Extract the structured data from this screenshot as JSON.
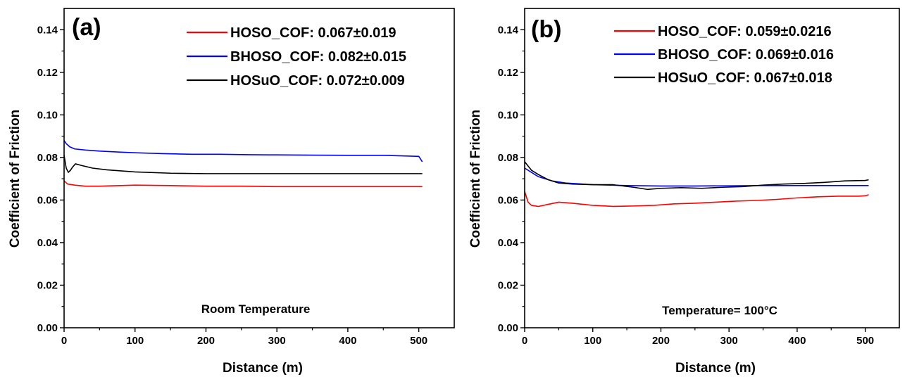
{
  "chart_data": [
    {
      "type": "line",
      "panel_label": "(a)",
      "xlabel": "Distance (m)",
      "ylabel": "Coefficient of Friction",
      "xlim": [
        0,
        550
      ],
      "ylim": [
        0,
        0.15
      ],
      "xticks": [
        0,
        100,
        200,
        300,
        400,
        500
      ],
      "yticks": [
        0.0,
        0.02,
        0.04,
        0.06,
        0.08,
        0.1,
        0.12,
        0.14
      ],
      "xtick_labels": [
        "0",
        "100",
        "200",
        "300",
        "400",
        "500"
      ],
      "ytick_labels": [
        "0.00",
        "0.02",
        "0.04",
        "0.06",
        "0.08",
        "0.10",
        "0.12",
        "0.14"
      ],
      "annotation": "Room Temperature",
      "legend_position": "top-right",
      "series": [
        {
          "name": "HOSO_COF: 0.067±0.019",
          "color": "#ff0000",
          "x": [
            0,
            5,
            15,
            30,
            50,
            100,
            150,
            200,
            250,
            300,
            350,
            400,
            450,
            505
          ],
          "y": [
            0.069,
            0.0675,
            0.067,
            0.0665,
            0.0665,
            0.067,
            0.0668,
            0.0665,
            0.0665,
            0.0663,
            0.0663,
            0.0663,
            0.0663,
            0.0663
          ]
        },
        {
          "name": "BHOSO_COF: 0.082±0.015",
          "color": "#0000ff",
          "x": [
            0,
            3,
            8,
            15,
            30,
            50,
            80,
            100,
            140,
            180,
            220,
            260,
            300,
            350,
            400,
            450,
            500,
            505
          ],
          "y": [
            0.088,
            0.0865,
            0.085,
            0.084,
            0.0835,
            0.083,
            0.0825,
            0.0822,
            0.0818,
            0.0815,
            0.0815,
            0.0813,
            0.0812,
            0.0811,
            0.081,
            0.081,
            0.0805,
            0.078
          ]
        },
        {
          "name": "HOSuO_COF: 0.072±0.009",
          "color": "#000000",
          "x": [
            0,
            3,
            6,
            9,
            12,
            16,
            25,
            40,
            60,
            100,
            150,
            200,
            250,
            300,
            350,
            400,
            450,
            505
          ],
          "y": [
            0.081,
            0.075,
            0.073,
            0.074,
            0.0755,
            0.077,
            0.0762,
            0.075,
            0.0742,
            0.0732,
            0.0726,
            0.0724,
            0.0724,
            0.0724,
            0.0724,
            0.0724,
            0.0724,
            0.0724
          ]
        }
      ]
    },
    {
      "type": "line",
      "panel_label": "(b)",
      "xlabel": "Distance (m)",
      "ylabel": "Coefficient of Friction",
      "xlim": [
        0,
        550
      ],
      "ylim": [
        0,
        0.15
      ],
      "xticks": [
        0,
        100,
        200,
        300,
        400,
        500
      ],
      "yticks": [
        0.0,
        0.02,
        0.04,
        0.06,
        0.08,
        0.1,
        0.12,
        0.14
      ],
      "xtick_labels": [
        "0",
        "100",
        "200",
        "300",
        "400",
        "500"
      ],
      "ytick_labels": [
        "0.00",
        "0.02",
        "0.04",
        "0.06",
        "0.08",
        "0.10",
        "0.12",
        "0.14"
      ],
      "annotation": "Temperature= 100°C",
      "legend_position": "top-right",
      "series": [
        {
          "name": "HOSO_COF: 0.059±0.0216",
          "color": "#ff0000",
          "x": [
            0,
            5,
            10,
            20,
            35,
            50,
            70,
            100,
            130,
            160,
            190,
            220,
            250,
            280,
            310,
            340,
            370,
            400,
            430,
            460,
            490,
            500,
            505
          ],
          "y": [
            0.064,
            0.059,
            0.0575,
            0.057,
            0.058,
            0.059,
            0.0585,
            0.0575,
            0.057,
            0.0572,
            0.0575,
            0.0582,
            0.0585,
            0.059,
            0.0595,
            0.0598,
            0.0603,
            0.061,
            0.0615,
            0.0618,
            0.0618,
            0.062,
            0.0625
          ]
        },
        {
          "name": "BHOSO_COF: 0.069±0.016",
          "color": "#0000ff",
          "x": [
            0,
            10,
            20,
            40,
            60,
            100,
            150,
            200,
            250,
            300,
            350,
            400,
            450,
            505
          ],
          "y": [
            0.075,
            0.073,
            0.071,
            0.069,
            0.068,
            0.0672,
            0.0668,
            0.0666,
            0.0666,
            0.0667,
            0.0668,
            0.0668,
            0.0668,
            0.0668
          ]
        },
        {
          "name": "HOSuO_COF: 0.067±0.018",
          "color": "#000000",
          "x": [
            0,
            5,
            10,
            20,
            35,
            50,
            70,
            100,
            130,
            160,
            180,
            200,
            230,
            260,
            290,
            320,
            350,
            380,
            410,
            440,
            470,
            500,
            505
          ],
          "y": [
            0.078,
            0.076,
            0.074,
            0.072,
            0.0695,
            0.068,
            0.0675,
            0.0672,
            0.0672,
            0.066,
            0.065,
            0.0655,
            0.0658,
            0.0655,
            0.066,
            0.0663,
            0.067,
            0.0675,
            0.0678,
            0.0683,
            0.069,
            0.0692,
            0.0695
          ]
        }
      ]
    }
  ]
}
